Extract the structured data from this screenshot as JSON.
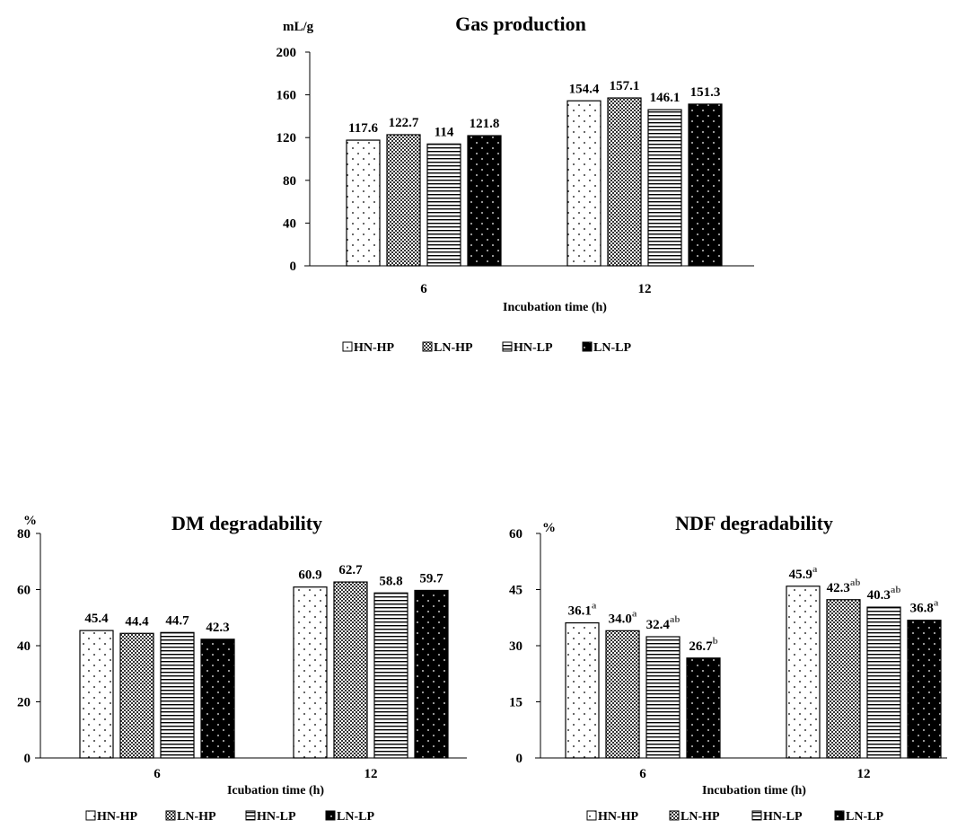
{
  "chart_data": [
    {
      "type": "bar",
      "title": "Gas production",
      "ylabel": "mL/g",
      "xlabel": "Incubation time (h)",
      "categories": [
        "6",
        "12"
      ],
      "yticks": [
        "0",
        "40",
        "80",
        "120",
        "160",
        "200"
      ],
      "ylim": [
        0,
        200
      ],
      "grid": false,
      "legend_position": "bottom",
      "series": [
        {
          "name": "HN-HP",
          "pattern": "sparse-dots",
          "values": [
            117.6,
            154.4
          ],
          "labels": [
            "117.6",
            "154.4"
          ],
          "sups": [
            "",
            ""
          ]
        },
        {
          "name": "LN-HP",
          "pattern": "checker",
          "values": [
            122.7,
            157.1
          ],
          "labels": [
            "122.7",
            "157.1"
          ],
          "sups": [
            "",
            ""
          ]
        },
        {
          "name": "HN-LP",
          "pattern": "horizontal-lines",
          "values": [
            114,
            146.1
          ],
          "labels": [
            "114",
            "146.1"
          ],
          "sups": [
            "",
            ""
          ]
        },
        {
          "name": "LN-LP",
          "pattern": "black-dots",
          "values": [
            121.8,
            151.3
          ],
          "labels": [
            "121.8",
            "151.3"
          ],
          "sups": [
            "",
            ""
          ]
        }
      ]
    },
    {
      "type": "bar",
      "title": "DM degradability",
      "ylabel": "%",
      "xlabel": "Icubation time (h)",
      "categories": [
        "6",
        "12"
      ],
      "yticks": [
        "0",
        "20",
        "40",
        "60",
        "80"
      ],
      "ylim": [
        0,
        80
      ],
      "grid": false,
      "legend_position": "bottom",
      "series": [
        {
          "name": "HN-HP",
          "pattern": "sparse-dots",
          "values": [
            45.4,
            60.9
          ],
          "labels": [
            "45.4",
            "60.9"
          ],
          "sups": [
            "",
            ""
          ]
        },
        {
          "name": "LN-HP",
          "pattern": "checker",
          "values": [
            44.4,
            62.7
          ],
          "labels": [
            "44.4",
            "62.7"
          ],
          "sups": [
            "",
            ""
          ]
        },
        {
          "name": "HN-LP",
          "pattern": "horizontal-lines",
          "values": [
            44.7,
            58.8
          ],
          "labels": [
            "44.7",
            "58.8"
          ],
          "sups": [
            "",
            ""
          ]
        },
        {
          "name": "LN-LP",
          "pattern": "black-dots",
          "values": [
            42.3,
            59.7
          ],
          "labels": [
            "42.3",
            "59.7"
          ],
          "sups": [
            "",
            ""
          ]
        }
      ]
    },
    {
      "type": "bar",
      "title": "NDF degradability",
      "ylabel": "%",
      "xlabel": "Incubation time (h)",
      "categories": [
        "6",
        "12"
      ],
      "yticks": [
        "0",
        "15",
        "30",
        "45",
        "60"
      ],
      "ylim": [
        0,
        60
      ],
      "grid": false,
      "legend_position": "bottom",
      "series": [
        {
          "name": "HN-HP",
          "pattern": "sparse-dots",
          "values": [
            36.1,
            45.9
          ],
          "labels": [
            "36.1",
            "45.9"
          ],
          "sups": [
            "a",
            "a"
          ]
        },
        {
          "name": "LN-HP",
          "pattern": "checker",
          "values": [
            34.0,
            42.3
          ],
          "labels": [
            "34.0",
            "42.3"
          ],
          "sups": [
            "a",
            "ab"
          ]
        },
        {
          "name": "HN-LP",
          "pattern": "horizontal-lines",
          "values": [
            32.4,
            40.3
          ],
          "labels": [
            "32.4",
            "40.3"
          ],
          "sups": [
            "ab",
            "ab"
          ]
        },
        {
          "name": "LN-LP",
          "pattern": "black-dots",
          "values": [
            26.7,
            36.8
          ],
          "labels": [
            "26.7",
            "36.8"
          ],
          "sups": [
            "b",
            "a"
          ]
        }
      ]
    }
  ],
  "colors": {
    "ink": "#000000",
    "superscript": "#555555",
    "background": "#ffffff"
  }
}
